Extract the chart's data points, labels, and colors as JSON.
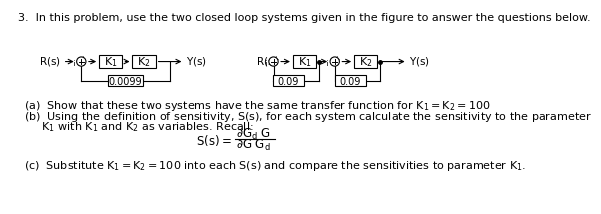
{
  "title": "3.  In this problem, use the two closed loop systems given in the figure to answer the questions below.",
  "part_a": "(a)  Show that these two systems have the same transfer function for $K_1 = K_2 = 100$",
  "part_b_line1": "(b)  Using the definition of sensitivity, $S(s)$, for each system calculate the sensitivity to the parameter",
  "part_b_line2": "     $K_1$ with $K_1$ and $K_2$ as variables. Recall:",
  "part_c": "(c)  Substitute $K_1 = K_2 = 100$ into each $S(s)$ and compare the sensitivities to parameter $K_1$.",
  "sys1_label_r": "$R(s)$",
  "sys1_label_y": "$Y(s)$",
  "sys1_k1": "$K_1$",
  "sys1_k2": "$K_2$",
  "sys1_fb": "0.0099",
  "sys2_label_r": "$R(s)$",
  "sys2_label_y": "$Y(s)$",
  "sys2_k1": "$K_1$",
  "sys2_k2": "$K_2$",
  "sys2_fb1": "0.09",
  "sys2_fb2": "0.09"
}
